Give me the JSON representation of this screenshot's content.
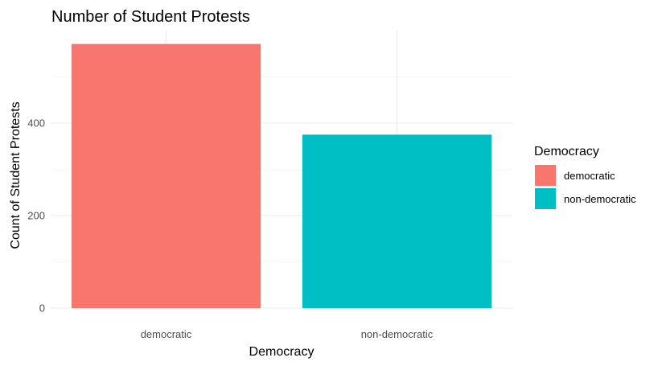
{
  "chart_data": {
    "type": "bar",
    "title": "Number of Student Protests",
    "xlabel": "Democracy",
    "ylabel": "Count of Student Protests",
    "categories": [
      "democratic",
      "non-democratic"
    ],
    "values": [
      571,
      375
    ],
    "colors": [
      "#F8766D",
      "#00BFC4"
    ],
    "ylim": [
      0,
      600
    ],
    "yticks": [
      0,
      200,
      400
    ],
    "grid": true,
    "legend": {
      "title": "Democracy",
      "position": "right",
      "items": [
        "democratic",
        "non-democratic"
      ]
    }
  }
}
